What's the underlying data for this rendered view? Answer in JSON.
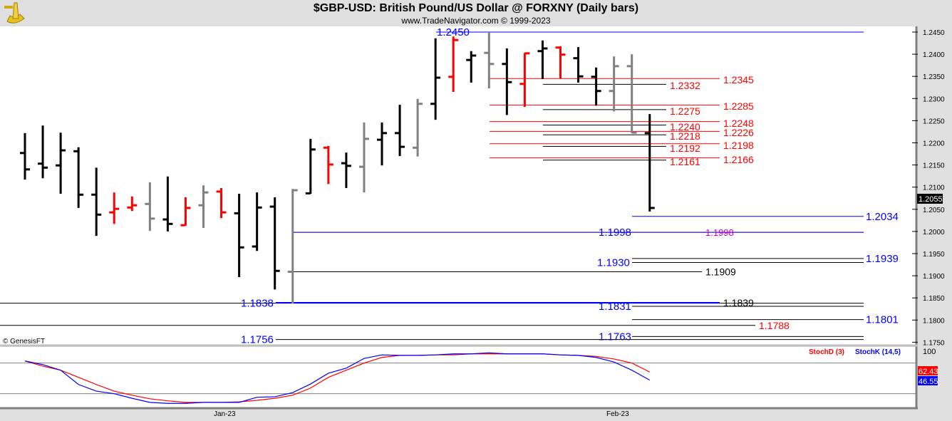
{
  "header": {
    "title": "$GBP-USD:  British Pound/US Dollar @ FORXNY  (Daily bars)",
    "subtitle": "www.TradeNavigator.com © 1999-2023",
    "logo": "sextant-logo"
  },
  "copyright": "© GenesisFT",
  "colors": {
    "up": "#ff0000",
    "down": "#000000",
    "neutral": "#808080",
    "stochK": "#0000ff",
    "stochD": "#ff0000",
    "level_blue": "#0000ff",
    "level_red": "#ff0000"
  },
  "chart_data": [
    {
      "type": "ohlc",
      "title": "$GBP-USD:  British Pound/US Dollar @ FORXNY  (Daily bars)",
      "ylim": [
        1.175,
        1.245
      ],
      "yticks": [
        "1.2450",
        "1.2400",
        "1.2350",
        "1.2300",
        "1.2250",
        "1.2200",
        "1.2150",
        "1.2100",
        "1.2050",
        "1.2000",
        "1.1950",
        "1.1900",
        "1.1850",
        "1.1800",
        "1.1750"
      ],
      "xticks": [
        "Jan-23",
        "Feb-23"
      ],
      "last_price": "1.2055",
      "bars": [
        {
          "o": 1.2177,
          "h": 1.2222,
          "l": 1.2117,
          "c": 1.214,
          "color": "black"
        },
        {
          "o": 1.2153,
          "h": 1.2239,
          "l": 1.212,
          "c": 1.2144,
          "color": "black"
        },
        {
          "o": 1.2149,
          "h": 1.2223,
          "l": 1.2085,
          "c": 1.2183,
          "color": "black"
        },
        {
          "o": 1.2181,
          "h": 1.219,
          "l": 1.2053,
          "c": 1.2083,
          "color": "black"
        },
        {
          "o": 1.2083,
          "h": 1.2144,
          "l": 1.199,
          "c": 1.2038,
          "color": "black"
        },
        {
          "o": 1.2043,
          "h": 1.2088,
          "l": 1.2017,
          "c": 1.2051,
          "color": "red"
        },
        {
          "o": 1.2054,
          "h": 1.2079,
          "l": 1.2046,
          "c": 1.2059,
          "color": "red"
        },
        {
          "o": 1.2062,
          "h": 1.2111,
          "l": 1.2001,
          "c": 1.2029,
          "color": "gray"
        },
        {
          "o": 1.2027,
          "h": 1.2124,
          "l": 1.2,
          "c": 1.2017,
          "color": "black"
        },
        {
          "o": 1.2014,
          "h": 1.2077,
          "l": 1.2013,
          "c": 1.2053,
          "color": "red"
        },
        {
          "o": 1.2059,
          "h": 1.2104,
          "l": 1.2008,
          "c": 1.2088,
          "color": "gray"
        },
        {
          "o": 1.209,
          "h": 1.2098,
          "l": 1.203,
          "c": 1.2043,
          "color": "red"
        },
        {
          "o": 1.2041,
          "h": 1.2085,
          "l": 1.1897,
          "c": 1.1964,
          "color": "black"
        },
        {
          "o": 1.1966,
          "h": 1.2088,
          "l": 1.1956,
          "c": 1.2054,
          "color": "black"
        },
        {
          "o": 1.2056,
          "h": 1.2077,
          "l": 1.1869,
          "c": 1.1911,
          "color": "black"
        },
        {
          "o": 1.1909,
          "h": 1.2096,
          "l": 1.1837,
          "c": 1.2093,
          "color": "gray"
        },
        {
          "o": 1.2086,
          "h": 1.2209,
          "l": 1.2085,
          "c": 1.2185,
          "color": "black"
        },
        {
          "o": 1.2189,
          "h": 1.2193,
          "l": 1.2107,
          "c": 1.2151,
          "color": "red"
        },
        {
          "o": 1.2154,
          "h": 1.2178,
          "l": 1.2098,
          "c": 1.2148,
          "color": "black"
        },
        {
          "o": 1.2146,
          "h": 1.2246,
          "l": 1.2088,
          "c": 1.2209,
          "color": "gray"
        },
        {
          "o": 1.2207,
          "h": 1.2246,
          "l": 1.2149,
          "c": 1.2222,
          "color": "black"
        },
        {
          "o": 1.2222,
          "h": 1.2286,
          "l": 1.217,
          "c": 1.2191,
          "color": "black"
        },
        {
          "o": 1.2189,
          "h": 1.2299,
          "l": 1.2169,
          "c": 1.2288,
          "color": "gray"
        },
        {
          "o": 1.2288,
          "h": 1.2436,
          "l": 1.2252,
          "c": 1.2347,
          "color": "black"
        },
        {
          "o": 1.2349,
          "h": 1.244,
          "l": 1.2315,
          "c": 1.2432,
          "color": "red"
        },
        {
          "o": 1.2387,
          "h": 1.2407,
          "l": 1.2336,
          "c": 1.2397,
          "color": "black"
        },
        {
          "o": 1.2403,
          "h": 1.245,
          "l": 1.2323,
          "c": 1.2378,
          "color": "gray"
        },
        {
          "o": 1.2378,
          "h": 1.2413,
          "l": 1.2263,
          "c": 1.2337,
          "color": "black"
        },
        {
          "o": 1.2333,
          "h": 1.2403,
          "l": 1.2281,
          "c": 1.2402,
          "color": "red"
        },
        {
          "o": 1.2407,
          "h": 1.2431,
          "l": 1.2344,
          "c": 1.2413,
          "color": "black"
        },
        {
          "o": 1.2415,
          "h": 1.2418,
          "l": 1.2345,
          "c": 1.2399,
          "color": "red"
        },
        {
          "o": 1.2391,
          "h": 1.2416,
          "l": 1.2336,
          "c": 1.235,
          "color": "black"
        },
        {
          "o": 1.2349,
          "h": 1.237,
          "l": 1.2284,
          "c": 1.2317,
          "color": "black"
        },
        {
          "o": 1.2317,
          "h": 1.2395,
          "l": 1.2271,
          "c": 1.2373,
          "color": "gray"
        },
        {
          "o": 1.2373,
          "h": 1.24,
          "l": 1.2222,
          "c": 1.2223,
          "color": "gray"
        },
        {
          "o": 1.2222,
          "h": 1.2265,
          "l": 1.2045,
          "c": 1.2053,
          "color": "black"
        }
      ],
      "levels": [
        {
          "price": 1.245,
          "label": "1.2450",
          "line": "#0000ff",
          "text": "#0000ff"
        },
        {
          "price": 1.2345,
          "label": "1.2345",
          "line": "#ff0000",
          "text": "#ff0000"
        },
        {
          "price": 1.2332,
          "label": "1.2332",
          "line": "#000000",
          "text": "#ff0000"
        },
        {
          "price": 1.2285,
          "label": "1.2285",
          "line": "#ff0000",
          "text": "#ff0000"
        },
        {
          "price": 1.2275,
          "label": "1.2275",
          "line": "#000000",
          "text": "#ff0000"
        },
        {
          "price": 1.2248,
          "label": "1.2248",
          "line": "#ff0000",
          "text": "#ff0000"
        },
        {
          "price": 1.224,
          "label": "1.2240",
          "line": "#000000",
          "text": "#ff0000"
        },
        {
          "price": 1.2226,
          "label": "1.2226",
          "line": "#ff0000",
          "text": "#ff0000"
        },
        {
          "price": 1.2218,
          "label": "1.2218",
          "line": "#000000",
          "text": "#ff0000"
        },
        {
          "price": 1.2198,
          "label": "1.2198",
          "line": "#ff0000",
          "text": "#ff0000"
        },
        {
          "price": 1.2192,
          "label": "1.2192",
          "line": "#000000",
          "text": "#ff0000"
        },
        {
          "price": 1.2166,
          "label": "1.2166",
          "line": "#ff0000",
          "text": "#ff0000"
        },
        {
          "price": 1.2161,
          "label": "1.2161",
          "line": "#000000",
          "text": "#ff0000"
        },
        {
          "price": 1.2034,
          "label": "1.2034",
          "line": "#0000ff",
          "text": "#0000ff"
        },
        {
          "price": 1.1998,
          "label": "1.1998",
          "line": "#ff0000",
          "text": "#0000ff"
        },
        {
          "price": 1.1998,
          "label": "1.1998",
          "line": "#0000ff",
          "text": "#cc00cc"
        },
        {
          "price": 1.1939,
          "label": "1.1939",
          "line": "#000000",
          "text": "#0000ff"
        },
        {
          "price": 1.193,
          "label": "1.1930",
          "line": "#000000",
          "text": "#0000ff"
        },
        {
          "price": 1.1909,
          "label": "1.1909",
          "line": "#000000",
          "text": "#000000"
        },
        {
          "price": 1.1838,
          "label": "1.1838",
          "line": "#000000",
          "text": "#0000ff"
        },
        {
          "price": 1.1839,
          "label": "1.1839",
          "line": "#0000ff",
          "text": "#000000"
        },
        {
          "price": 1.1831,
          "label": "1.1831",
          "line": "#000000",
          "text": "#0000ff"
        },
        {
          "price": 1.1801,
          "label": "1.1801",
          "line": "#000000",
          "text": "#0000ff"
        },
        {
          "price": 1.1788,
          "label": "1.1788",
          "line": "#000000",
          "text": "#ff0000"
        },
        {
          "price": 1.1763,
          "label": "1.1763",
          "line": "#000000",
          "text": "#0000ff"
        },
        {
          "price": 1.1756,
          "label": "1.1756",
          "line": "#000000",
          "text": "#0000ff"
        }
      ]
    },
    {
      "type": "line",
      "ylim": [
        0,
        100
      ],
      "yticks": [
        "100"
      ],
      "reference_lines": [
        80,
        20
      ],
      "series": [
        {
          "name": "StochD (3)",
          "color": "#ff0000",
          "last": "62.43",
          "values": [
            84,
            74,
            66,
            52,
            38,
            25,
            17,
            10,
            6,
            3,
            3,
            3,
            4,
            7,
            11,
            17,
            31,
            52,
            66,
            80,
            91,
            95,
            95,
            96,
            96,
            98,
            98,
            98,
            98,
            98,
            96,
            95,
            93,
            88,
            80,
            62.43
          ]
        },
        {
          "name": "StochK (14,5)",
          "color": "#0000ff",
          "last": "46.55",
          "values": [
            84,
            77,
            66,
            38,
            25,
            20,
            11,
            3,
            1,
            1,
            3,
            3,
            3,
            13,
            14,
            22,
            39,
            60,
            70,
            89,
            96,
            95,
            95,
            96,
            98,
            98,
            100,
            98,
            98,
            98,
            96,
            95,
            91,
            82,
            66,
            46.55
          ]
        }
      ]
    }
  ]
}
